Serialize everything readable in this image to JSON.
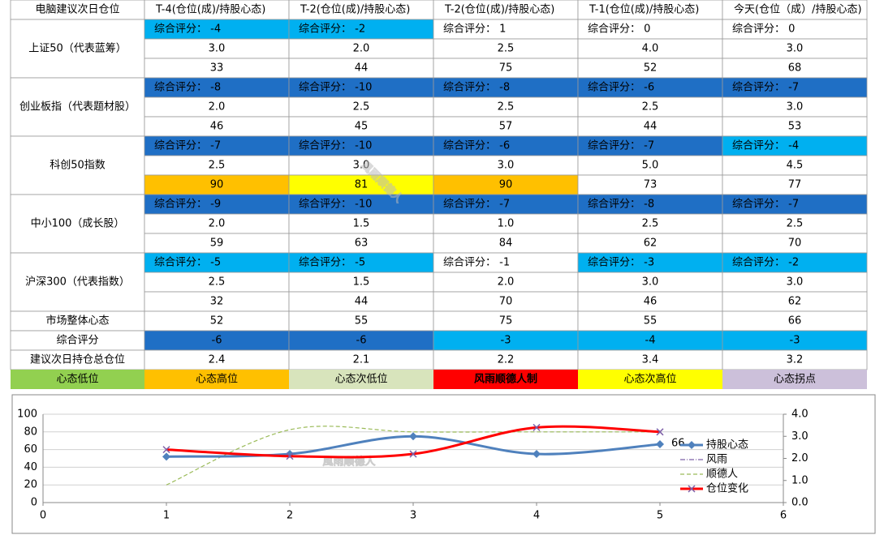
{
  "watermark": "風雨顺德人",
  "table": {
    "header": [
      "电脑建议次日仓位",
      "T-4(仓位(成)/持股心态)",
      "T-2(仓位(成)/持股心态)",
      "T-2(仓位(成)/持股心态)",
      "T-1(仓位(成)/持股心态)",
      "今天(仓位（成）/持股心态)"
    ],
    "groups": [
      {
        "name": "上证50（代表蓝筹）",
        "rows": [
          [
            "综合评分： -4",
            "综合评分： -2",
            "综合评分： 1",
            "综合评分： 0",
            "综合评分： 0"
          ],
          [
            "3.0",
            "2.0",
            "2.5",
            "4.0",
            "3.0"
          ],
          [
            "33",
            "44",
            "75",
            "52",
            "68"
          ]
        ],
        "fills": [
          [
            "#00b0f0",
            "#00b0f0",
            null,
            null,
            null
          ],
          [
            null,
            null,
            null,
            null,
            null
          ],
          [
            null,
            null,
            null,
            null,
            null
          ]
        ]
      },
      {
        "name": "创业板指（代表题材股）",
        "rows": [
          [
            "综合评分： -8",
            "综合评分： -10",
            "综合评分： -8",
            "综合评分： -6",
            "综合评分： -7"
          ],
          [
            "2.0",
            "2.5",
            "2.5",
            "2.5",
            "3.0"
          ],
          [
            "46",
            "45",
            "57",
            "44",
            "53"
          ]
        ],
        "fills": [
          [
            "#1f6fc5",
            "#1f6fc5",
            "#1f6fc5",
            "#1f6fc5",
            "#1f6fc5"
          ],
          [
            null,
            null,
            null,
            null,
            null
          ],
          [
            null,
            null,
            null,
            null,
            null
          ]
        ]
      },
      {
        "name": "科创50指数",
        "rows": [
          [
            "综合评分： -7",
            "综合评分： -10",
            "综合评分： -6",
            "综合评分： -7",
            "综合评分： -4"
          ],
          [
            "2.5",
            "3.0",
            "3.0",
            "5.0",
            "4.5"
          ],
          [
            "90",
            "81",
            "90",
            "73",
            "77"
          ]
        ],
        "fills": [
          [
            "#1f6fc5",
            "#1f6fc5",
            "#1f6fc5",
            "#1f6fc5",
            "#00b0f0"
          ],
          [
            null,
            null,
            null,
            null,
            null
          ],
          [
            "#ffc000",
            "#ffff00",
            "#ffc000",
            null,
            null
          ]
        ]
      },
      {
        "name": "中小100（成长股）",
        "rows": [
          [
            "综合评分： -9",
            "综合评分： -10",
            "综合评分： -7",
            "综合评分： -8",
            "综合评分： -7"
          ],
          [
            "2.0",
            "1.5",
            "1.0",
            "2.5",
            "2.5"
          ],
          [
            "59",
            "63",
            "84",
            "62",
            "70"
          ]
        ],
        "fills": [
          [
            "#1f6fc5",
            "#1f6fc5",
            "#1f6fc5",
            "#1f6fc5",
            "#1f6fc5"
          ],
          [
            null,
            null,
            null,
            null,
            null
          ],
          [
            null,
            null,
            null,
            null,
            null
          ]
        ]
      },
      {
        "name": "沪深300（代表指数）",
        "rows": [
          [
            "综合评分： -5",
            "综合评分： -5",
            "综合评分： -1",
            "综合评分： -3",
            "综合评分： -2"
          ],
          [
            "2.5",
            "1.5",
            "2.0",
            "3.0",
            "3.0"
          ],
          [
            "32",
            "44",
            "70",
            "46",
            "62"
          ]
        ],
        "fills": [
          [
            "#00b0f0",
            "#00b0f0",
            null,
            "#00b0f0",
            "#00b0f0"
          ],
          [
            null,
            null,
            null,
            null,
            null
          ],
          [
            null,
            null,
            null,
            null,
            null
          ]
        ]
      }
    ],
    "summary": [
      {
        "label": "市场整体心态",
        "cells": [
          "52",
          "55",
          "75",
          "55",
          "66"
        ],
        "fills": [
          null,
          null,
          null,
          null,
          null
        ]
      },
      {
        "label": "综合评分",
        "cells": [
          "-6",
          "-6",
          "-3",
          "-4",
          "-3"
        ],
        "fills": [
          "#1f6fc5",
          "#1f6fc5",
          "#00b0f0",
          "#00b0f0",
          "#00b0f0"
        ]
      },
      {
        "label": "建议次日持仓总仓位",
        "cells": [
          "2.4",
          "2.1",
          "2.2",
          "3.4",
          "3.2"
        ],
        "fills": [
          null,
          null,
          null,
          null,
          null
        ]
      }
    ],
    "legend": [
      {
        "label": "心态低位",
        "color": "#92d050"
      },
      {
        "label": "心态高位",
        "color": "#ffc000"
      },
      {
        "label": "心态次低位",
        "color": "#d8e4bc"
      },
      {
        "label": "风雨顺德人制",
        "color": "#ff0000",
        "bold": true
      },
      {
        "label": "心态次高位",
        "color": "#ffff00"
      },
      {
        "label": "心态拐点",
        "color": "#ccc0da"
      }
    ]
  },
  "chart_data": {
    "type": "line",
    "x": [
      1,
      2,
      3,
      4,
      5
    ],
    "xlim": [
      0,
      6
    ],
    "xticks": [
      0,
      1,
      2,
      3,
      4,
      5,
      6
    ],
    "ylim": [
      0,
      100
    ],
    "yticks": [
      0,
      20,
      40,
      60,
      80,
      100
    ],
    "y2lim": [
      0,
      4
    ],
    "y2ticks": [
      {
        "value": 0,
        "label": "0.0"
      },
      {
        "value": 1,
        "label": "1.0"
      },
      {
        "value": 2,
        "label": "2.0"
      },
      {
        "value": 3,
        "label": "3.0"
      },
      {
        "value": 4,
        "label": "4.0"
      }
    ],
    "grid": true,
    "series": [
      {
        "name": "持股心态",
        "color": "#4f81bd",
        "values": [
          52,
          55,
          75,
          55,
          66
        ],
        "value_labels": [
          null,
          null,
          null,
          null,
          "66"
        ],
        "marker": "diamond",
        "width": 3,
        "smooth": true
      },
      {
        "name": "风雨",
        "color": "#7e60a8",
        "values": [
          2.4,
          2.1,
          2.2,
          3.4,
          3.2
        ],
        "axis": "y2",
        "dash": "6 2 1 2",
        "width": 1.2,
        "smooth": true
      },
      {
        "name": "顺德人",
        "color": "#9bbb59",
        "values": [
          0.8,
          3.3,
          3.2,
          3.2,
          3.2
        ],
        "axis": "y2",
        "dash": "5 3",
        "width": 1.2,
        "smooth": true
      },
      {
        "name": "仓位变化",
        "color": "#ff0000",
        "values": [
          2.4,
          2.1,
          2.2,
          3.4,
          3.2
        ],
        "axis": "y2",
        "marker": "x",
        "marker_color": "#7e60a8",
        "width": 3,
        "smooth": true
      }
    ]
  }
}
